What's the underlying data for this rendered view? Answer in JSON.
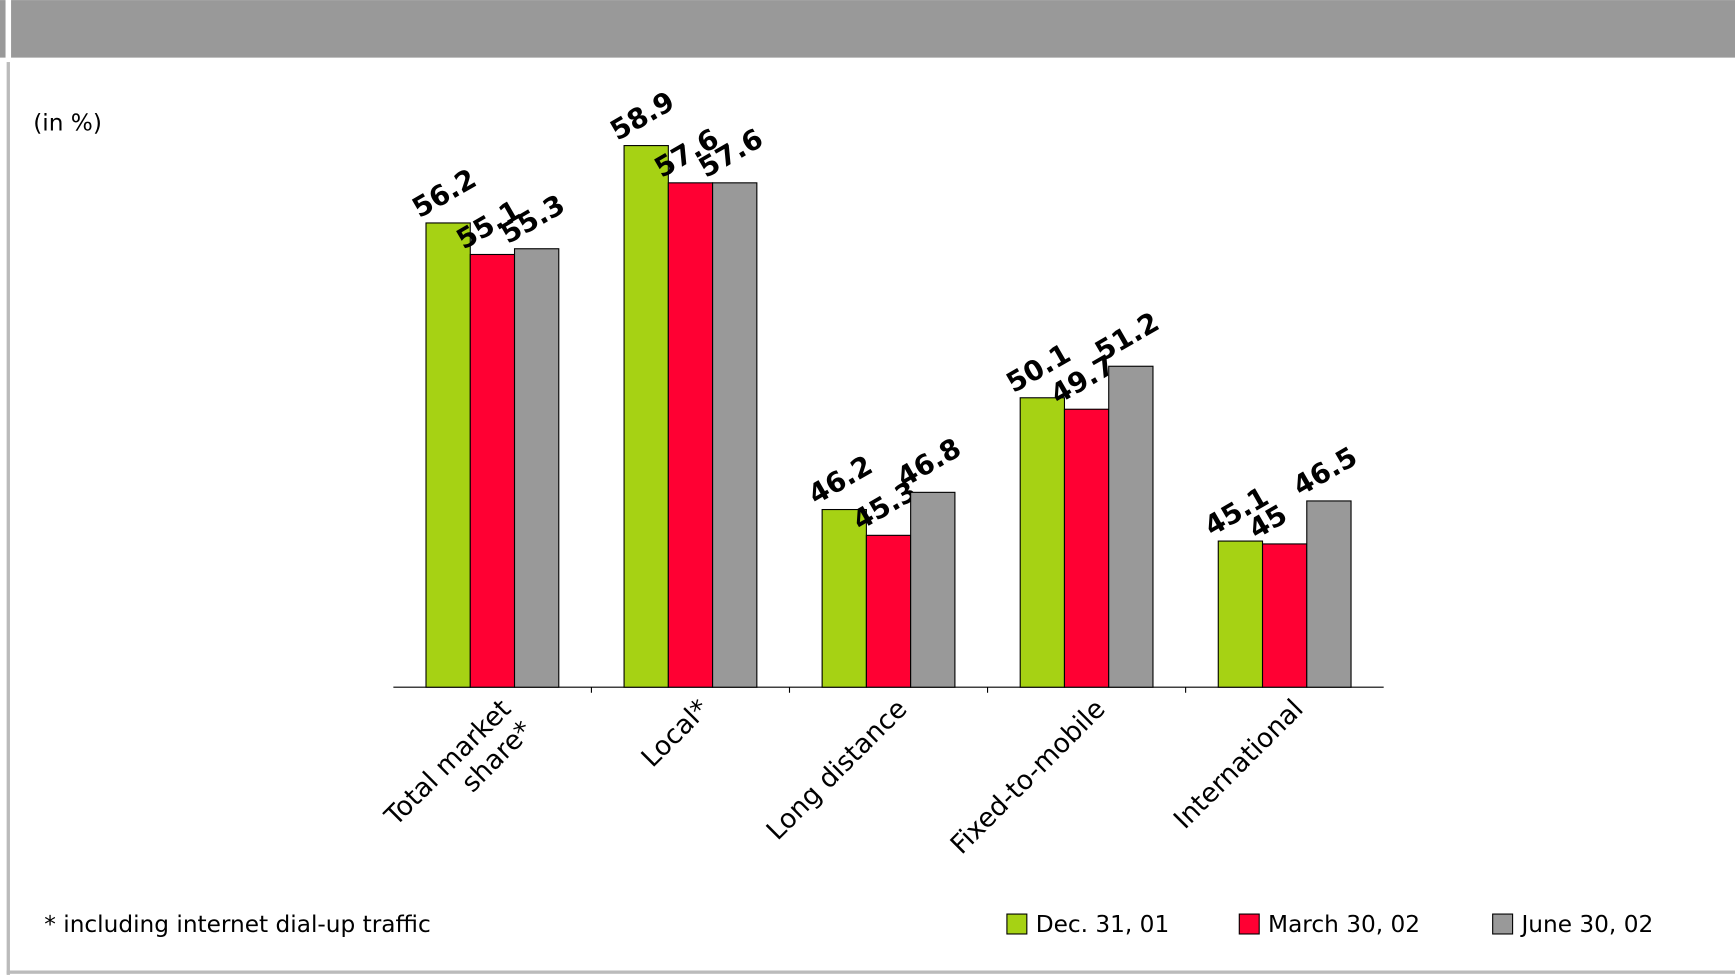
{
  "chart_data": {
    "type": "bar",
    "y_label": "(in %)",
    "categories": [
      "Total market share*",
      "Local*",
      "Long distance",
      "Fixed-to-mobile",
      "International"
    ],
    "series": [
      {
        "name": "Dec. 31, 01",
        "color": "#a6d214",
        "values": [
          56.2,
          58.9,
          46.2,
          50.1,
          45.1
        ]
      },
      {
        "name": "March 30, 02",
        "color": "#ff0033",
        "values": [
          55.1,
          57.6,
          45.3,
          49.7,
          45.0
        ]
      },
      {
        "name": "June 30, 02",
        "color": "#999999",
        "values": [
          55.3,
          57.6,
          46.8,
          51.2,
          46.5
        ]
      }
    ],
    "ylim": [
      40,
      60
    ],
    "footnote": "* including internet dial-up traffic"
  }
}
